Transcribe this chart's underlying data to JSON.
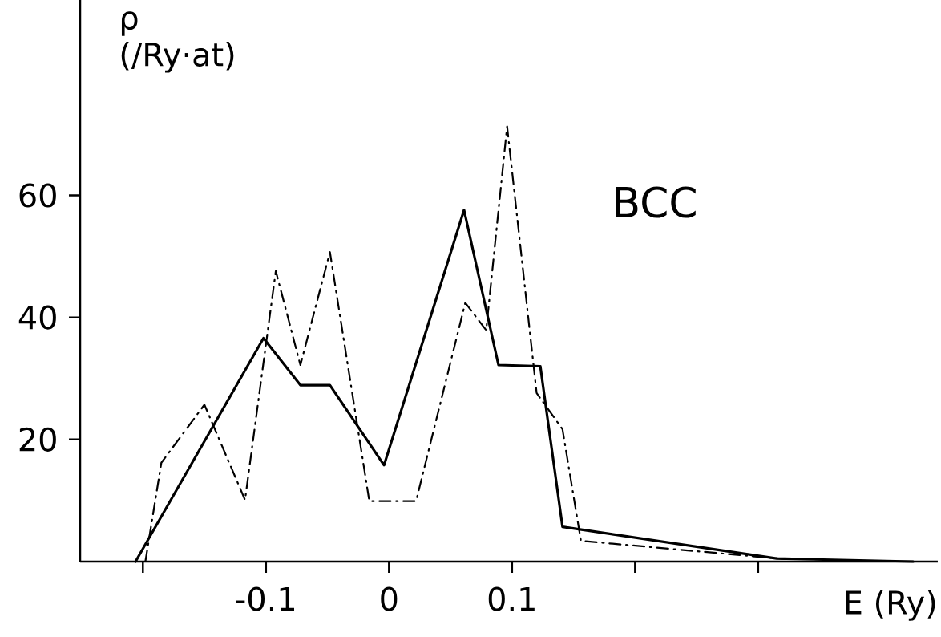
{
  "chart_data": {
    "type": "line",
    "ylabel": "ρ (/Ry·at)",
    "xlabel": "E (Ry)",
    "annotations": [
      "BCC"
    ],
    "xlim": [
      -0.251,
      0.446
    ],
    "ylim": [
      0,
      92
    ],
    "xticks": [
      {
        "value": -0.2,
        "label": null
      },
      -0.1,
      0,
      0.1,
      {
        "value": 0.2,
        "label": null
      },
      {
        "value": 0.3,
        "label": null
      }
    ],
    "yticks": [
      20,
      40,
      60
    ],
    "grid": false,
    "marker": "none",
    "series": [
      {
        "color": "#000000",
        "line_style": "solid",
        "x": [
          -0.206,
          -0.102,
          -0.072,
          -0.048,
          -0.004,
          0.061,
          0.089,
          0.123,
          0.141,
          0.315,
          0.426
        ],
        "values": [
          0,
          36.6,
          28.9,
          28.9,
          15.8,
          57.6,
          32.2,
          32,
          5.7,
          0.5,
          0
        ]
      },
      {
        "color": "#000000",
        "line_style": "dashdot",
        "x": [
          -0.198,
          -0.185,
          -0.15,
          -0.117,
          -0.092,
          -0.072,
          -0.048,
          -0.016,
          0.022,
          0.062,
          0.079,
          0.096,
          0.12,
          0.141,
          0.156,
          0.322
        ],
        "values": [
          0,
          16.2,
          25.7,
          10.1,
          47.6,
          32.2,
          50.7,
          9.9,
          9.9,
          42.4,
          37.9,
          71.3,
          27.6,
          21.7,
          3.4,
          0.4
        ]
      }
    ]
  }
}
